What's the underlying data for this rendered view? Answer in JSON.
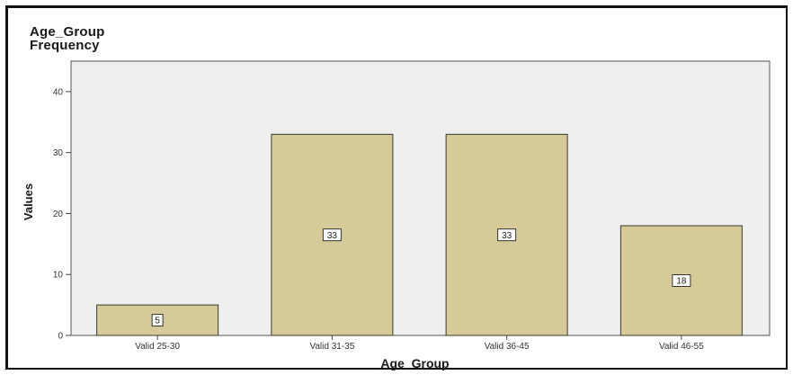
{
  "chart_data": {
    "type": "bar",
    "title_lines": [
      "Age_Group",
      "Frequency"
    ],
    "xlabel": "Age_Group",
    "ylabel": "Values",
    "categories": [
      "Valid 25-30",
      "Valid 31-35",
      "Valid 36-45",
      "Valid 46-55"
    ],
    "values": [
      5,
      33,
      33,
      18
    ],
    "data_labels": [
      "5",
      "33",
      "33",
      "18"
    ],
    "ylim": [
      0,
      45
    ],
    "yticks": [
      0,
      10,
      20,
      30,
      40
    ],
    "ytick_labels": [
      "0",
      "10",
      "20",
      "30",
      "40"
    ],
    "grid": false,
    "colors": {
      "bar_fill": "#d6cb98",
      "bar_stroke": "#3a3a2a",
      "plot_bg": "#efefef",
      "plot_border": "#555555"
    }
  }
}
